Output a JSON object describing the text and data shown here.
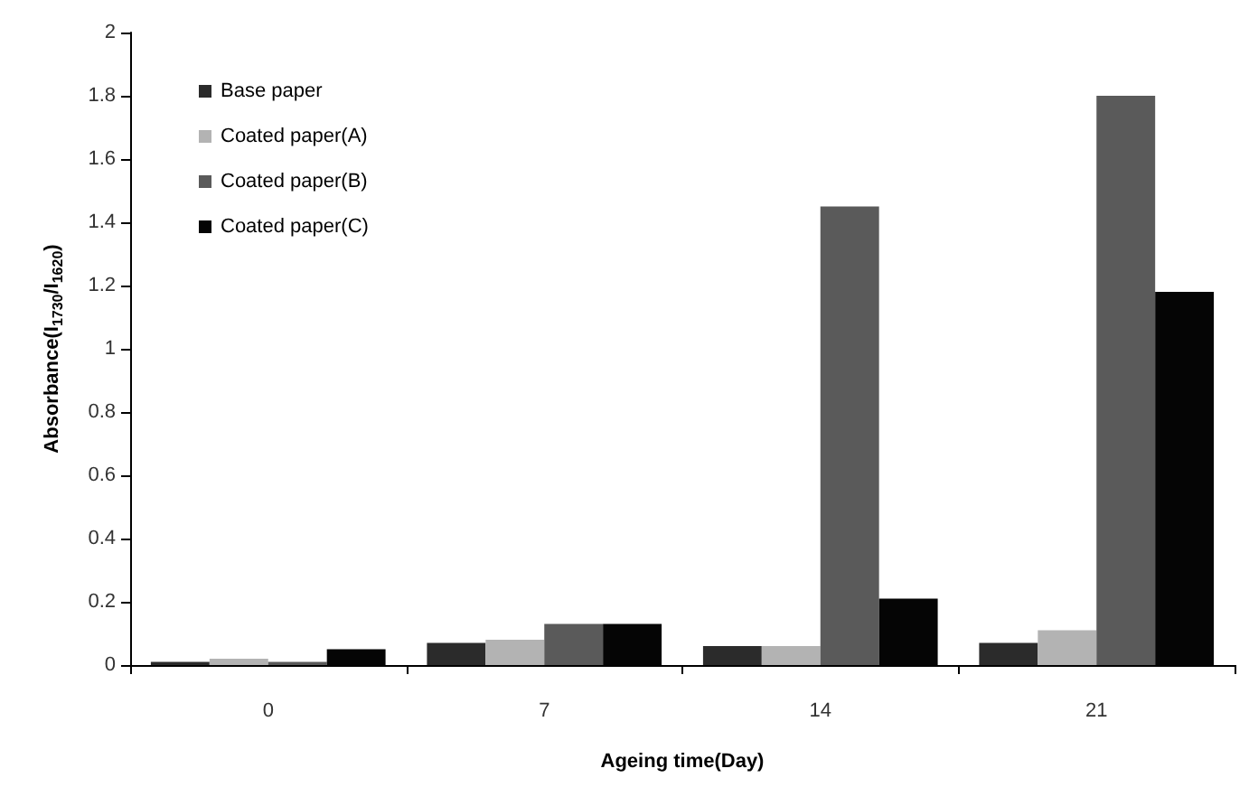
{
  "chart_data": {
    "type": "bar",
    "xlabel": "Ageing time(Day)",
    "ylabel": "Absorbance(I$_{1730}$/I$_{1620}$)",
    "categories": [
      "0",
      "7",
      "14",
      "21"
    ],
    "series": [
      {
        "name": "Base paper",
        "color": "#2b2b2b",
        "values": [
          0.01,
          0.07,
          0.06,
          0.07
        ]
      },
      {
        "name": "Coated paper(A)",
        "color": "#b3b3b3",
        "values": [
          0.02,
          0.08,
          0.06,
          0.11
        ]
      },
      {
        "name": "Coated paper(B)",
        "color": "#5a5a5a",
        "values": [
          0.01,
          0.13,
          1.45,
          1.8
        ]
      },
      {
        "name": "Coated paper(C)",
        "color": "#050505",
        "values": [
          0.05,
          0.13,
          0.21,
          1.18
        ]
      }
    ],
    "ylim": [
      0,
      2
    ],
    "yticks": [
      0,
      0.2,
      0.4,
      0.6,
      0.8,
      1,
      1.2,
      1.4,
      1.6,
      1.8,
      2
    ],
    "grid": false,
    "legend": "top left"
  }
}
